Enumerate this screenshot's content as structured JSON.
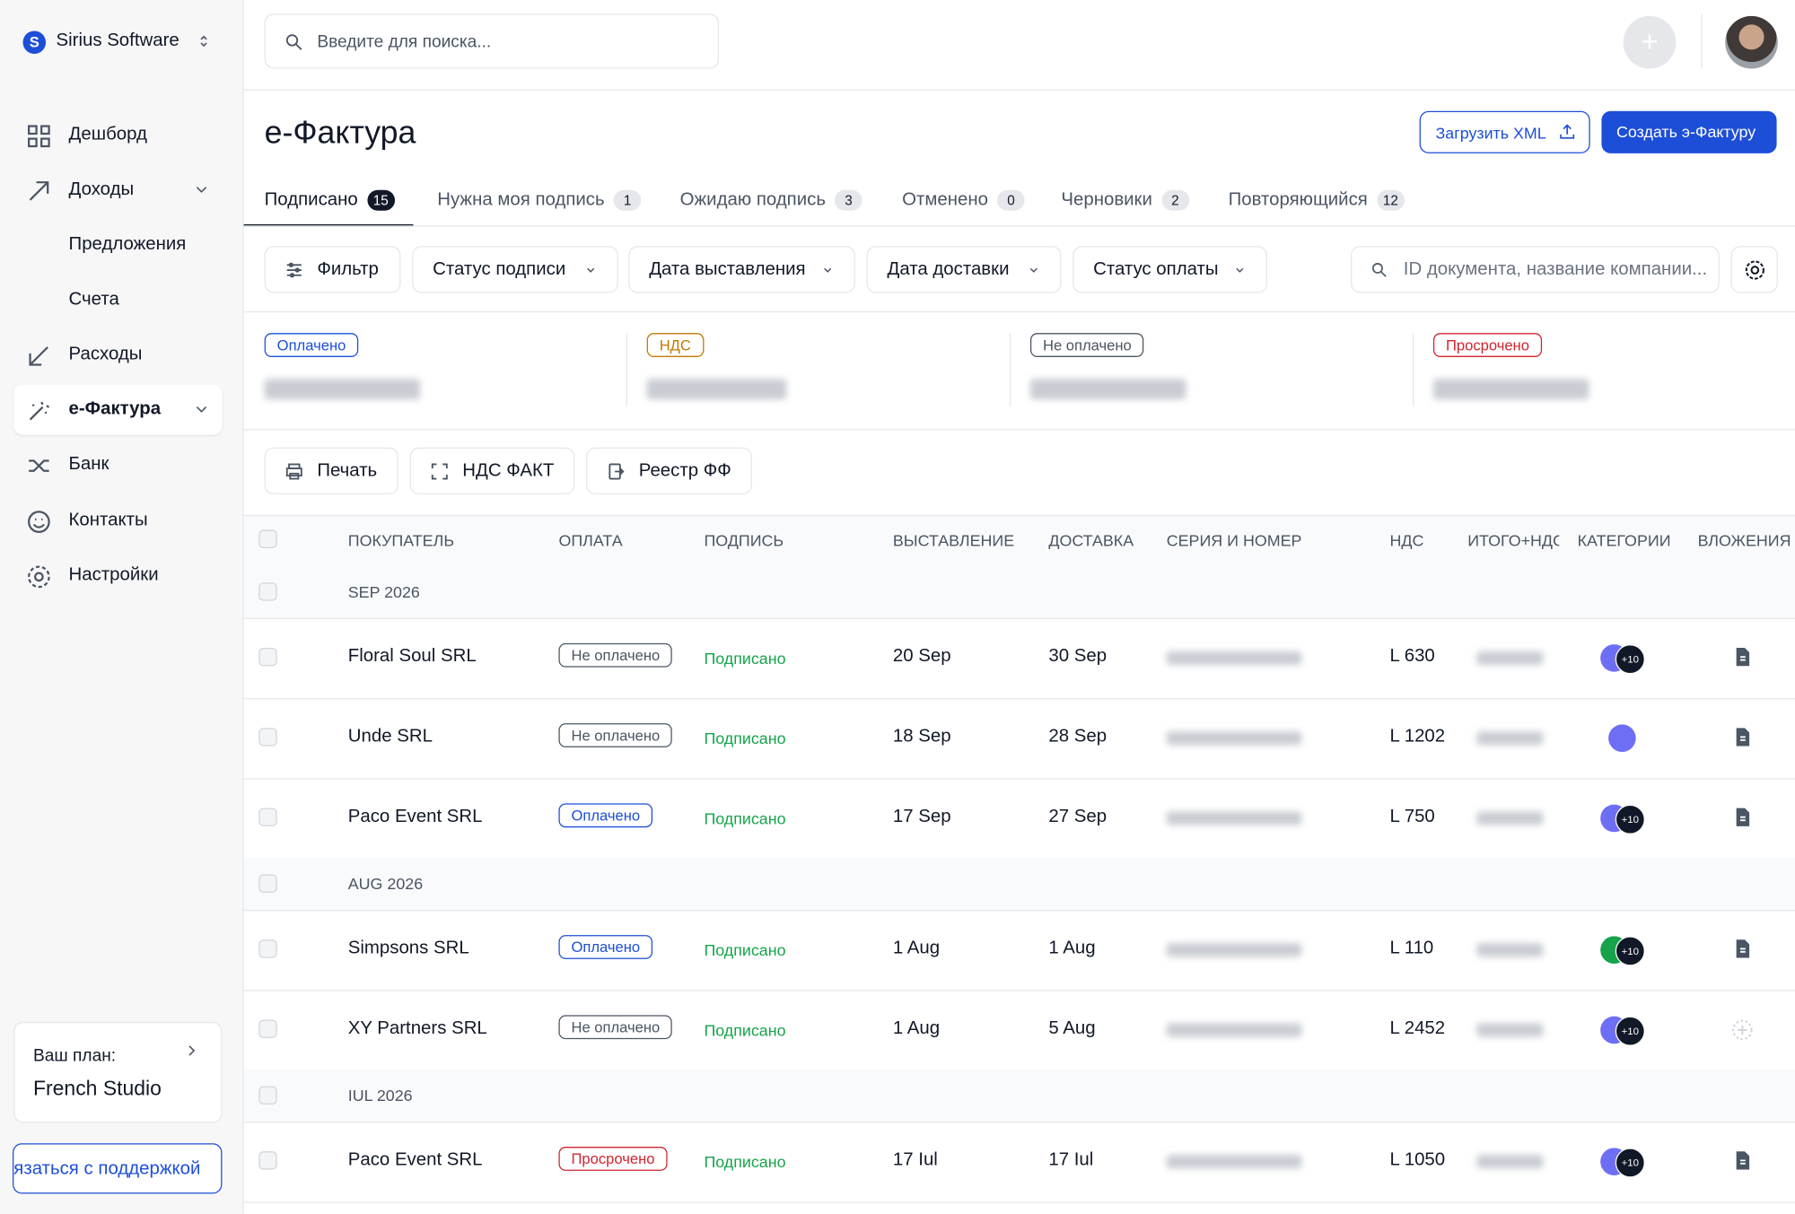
{
  "sidebar": {
    "company": "Sirius Software",
    "nav": [
      "Дешборд",
      "Доходы",
      "Предложения",
      "Счета",
      "Расходы",
      "е-Фактура",
      "Банк",
      "Контакты",
      "Настройки"
    ],
    "plan_label": "Ваш план:",
    "plan_name": "French Studio",
    "support": "язаться с поддержкой"
  },
  "header": {
    "search_placeholder": "Введите для поиска..."
  },
  "page": {
    "title": "е-Фактура",
    "upload": "Загрузить XML",
    "create": "Создать э-Фактуру",
    "tabs": [
      {
        "label": "Подписано",
        "count": 15
      },
      {
        "label": "Нужна моя подпись",
        "count": 1
      },
      {
        "label": "Ожидаю подпись",
        "count": 3
      },
      {
        "label": "Отменено",
        "count": 0
      },
      {
        "label": "Черновики",
        "count": 2
      },
      {
        "label": "Повторяющийся",
        "count": 12
      }
    ],
    "filters": [
      "Фильтр",
      "Статус подписи",
      "Дата выставления",
      "Дата доставки",
      "Статус оплаты"
    ],
    "doc_search": "ID документа, название компании...",
    "summary": [
      "Оплачено",
      "НДС",
      "Не оплачено",
      "Просрочено"
    ],
    "actions": [
      "Печать",
      "НДС ФАКТ",
      "Реестр ФФ"
    ]
  },
  "table": {
    "columns": [
      "ПОКУПАТЕЛЬ",
      "ОПЛАТА",
      "ПОДПИСЬ",
      "ВЫСТАВЛЕНИЕ",
      "ДОСТАВКА",
      "СЕРИЯ И НОМЕР",
      "НДС",
      "ИТОГО+НДС",
      "КАТЕГОРИИ",
      "ВЛОЖЕНИЯ"
    ],
    "groups": [
      {
        "label": "SEP 2026",
        "rows": [
          {
            "buyer": "Floral Soul SRL",
            "payment": "Не оплачено",
            "signature": "Подписано",
            "issued": "20 Sep",
            "delivery": "30 Sep",
            "nds": "L 630",
            "category_color": "#6e6ef5",
            "category_more": "+10"
          },
          {
            "buyer": "Unde SRL",
            "payment": "Не оплачено",
            "signature": "Подписано",
            "issued": "18 Sep",
            "delivery": "28 Sep",
            "nds": "L 1202",
            "category_color": "#6e6ef5",
            "category_more": null
          },
          {
            "buyer": "Paco Event SRL",
            "payment": "Оплачено",
            "signature": "Подписано",
            "issued": "17 Sep",
            "delivery": "27 Sep",
            "nds": "L 750",
            "category_color": "#6e6ef5",
            "category_more": "+10"
          }
        ]
      },
      {
        "label": "AUG 2026",
        "rows": [
          {
            "buyer": "Simpsons SRL",
            "payment": "Оплачено",
            "signature": "Подписано",
            "issued": "1 Aug",
            "delivery": "1 Aug",
            "nds": "L 110",
            "category_color": "#16a34a",
            "category_more": "+10"
          },
          {
            "buyer": "XY Partners SRL",
            "payment": "Не оплачено",
            "signature": "Подписано",
            "issued": "1 Aug",
            "delivery": "5 Aug",
            "nds": "L 2452",
            "category_color": "#6e6ef5",
            "category_more": "+10"
          }
        ]
      },
      {
        "label": "IUL 2026",
        "rows": [
          {
            "buyer": "Paco Event SRL",
            "payment": "Просрочено",
            "signature": "Подписано",
            "issued": "17 Iul",
            "delivery": "17 Iul",
            "nds": "L 1050",
            "category_color": "#6e6ef5",
            "category_more": "+10"
          }
        ]
      }
    ]
  }
}
